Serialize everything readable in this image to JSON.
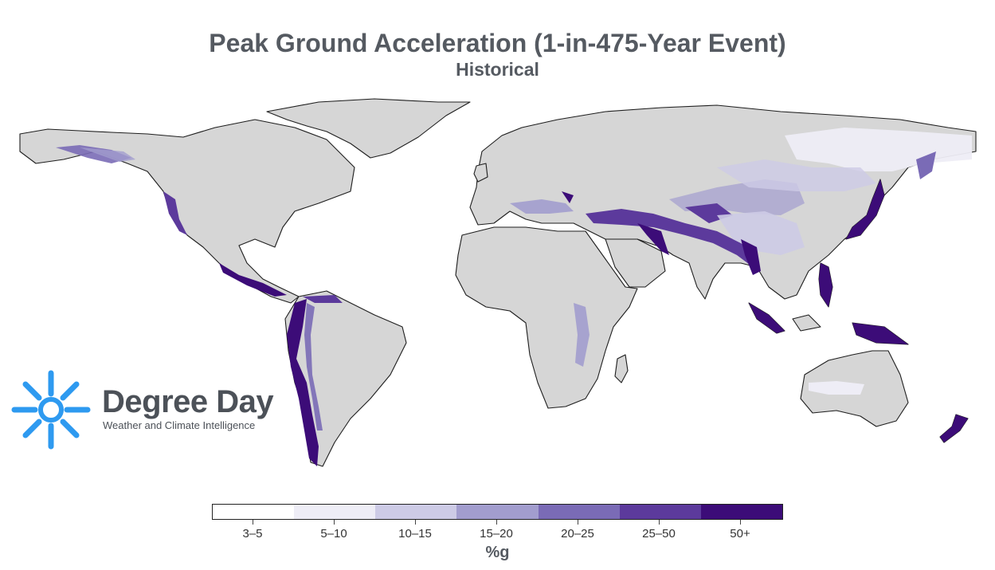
{
  "title": "Peak Ground Acceleration (1-in-475-Year Event)",
  "subtitle": "Historical",
  "logo": {
    "name": "Degree Day",
    "tagline": "Weather and Climate Intelligence",
    "icon": "sun-icon",
    "icon_color": "#2e9af0"
  },
  "legend": {
    "unit": "%g",
    "classes": [
      {
        "label": "3–5",
        "color": "#ffffff"
      },
      {
        "label": "5–10",
        "color": "#eeedf6"
      },
      {
        "label": "10–15",
        "color": "#cdcbe6"
      },
      {
        "label": "15–20",
        "color": "#a29dce"
      },
      {
        "label": "20–25",
        "color": "#7a6bb6"
      },
      {
        "label": "25–50",
        "color": "#5c3a9c"
      },
      {
        "label": "50+",
        "color": "#3c0c78"
      }
    ]
  },
  "colors": {
    "land": "#d6d6d6",
    "coastline": "#1e1e1e",
    "title_text": "#555a61"
  }
}
